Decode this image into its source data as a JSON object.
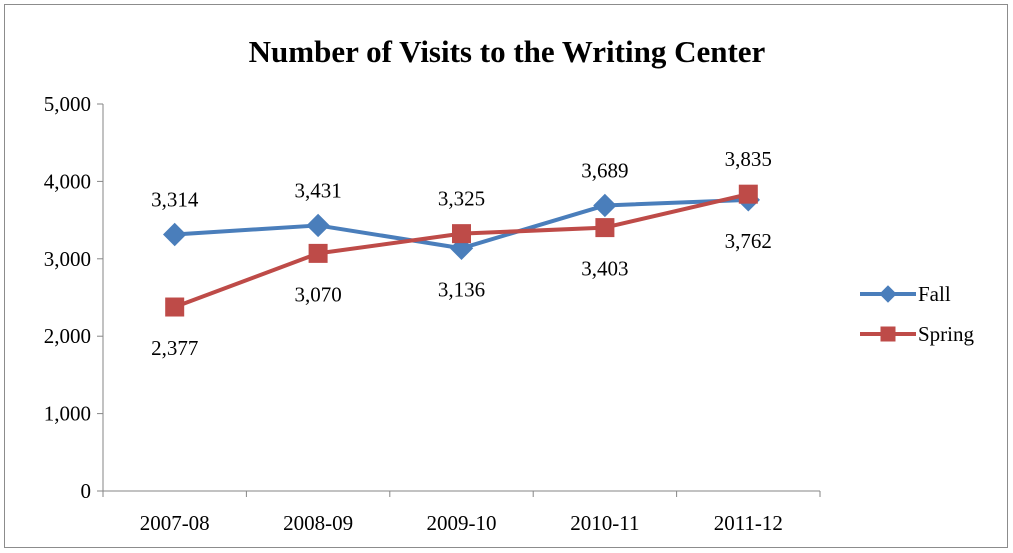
{
  "chart_data": {
    "type": "line",
    "title": "Number of Visits to the Writing Center",
    "xlabel": "",
    "ylabel": "",
    "categories": [
      "2007-08",
      "2008-09",
      "2009-10",
      "2010-11",
      "2011-12"
    ],
    "ylim": [
      0,
      5000
    ],
    "yticks": [
      0,
      1000,
      2000,
      3000,
      4000,
      5000
    ],
    "ytick_labels": [
      "0",
      "1,000",
      "2,000",
      "3,000",
      "4,000",
      "5,000"
    ],
    "grid": false,
    "legend": "right",
    "series": [
      {
        "name": "Fall",
        "color": "#4a7ebb",
        "marker": "diamond",
        "values": [
          3314,
          3431,
          3136,
          3689,
          3762
        ],
        "labels": [
          "3,314",
          "3,431",
          "3,136",
          "3,689",
          "3,762"
        ],
        "label_pos": [
          "above",
          "above",
          "below",
          "above",
          "below"
        ]
      },
      {
        "name": "Spring",
        "color": "#be4b48",
        "marker": "square",
        "values": [
          2377,
          3070,
          3325,
          3403,
          3835
        ],
        "labels": [
          "2,377",
          "3,070",
          "3,325",
          "3,403",
          "3,835"
        ],
        "label_pos": [
          "below",
          "below",
          "above",
          "below",
          "above"
        ]
      }
    ]
  }
}
